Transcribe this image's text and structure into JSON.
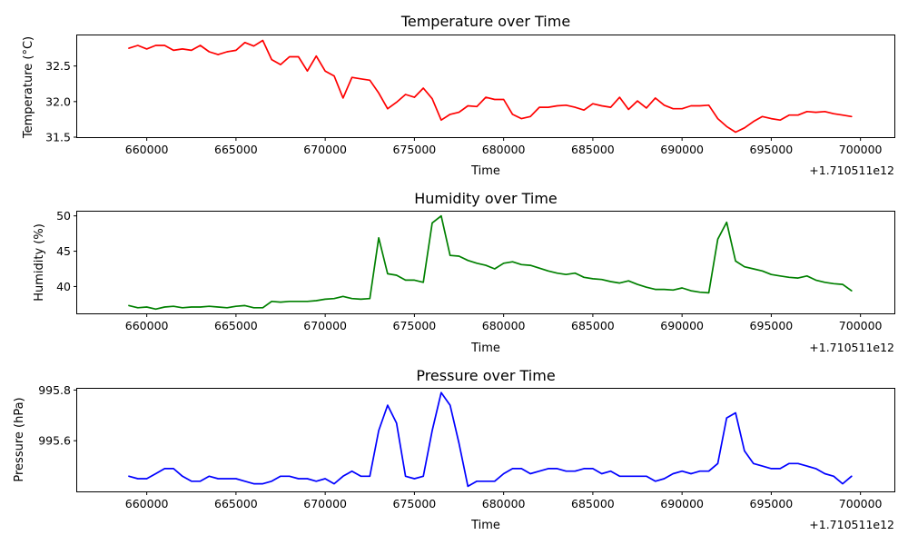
{
  "chart_data": [
    {
      "type": "line",
      "title": "Temperature over Time",
      "xlabel": "Time",
      "ylabel": "Temperature (°C)",
      "x_offset_label": "+1.710511e12",
      "xlim": [
        656100,
        701900
      ],
      "ylim": [
        31.5,
        32.93
      ],
      "xticks": [
        660000,
        665000,
        670000,
        675000,
        680000,
        685000,
        690000,
        695000,
        700000
      ],
      "xtick_labels": [
        "660000",
        "665000",
        "670000",
        "675000",
        "680000",
        "685000",
        "690000",
        "695000",
        "700000"
      ],
      "yticks": [
        31.5,
        32.0,
        32.5
      ],
      "ytick_labels": [
        "31.5",
        "32.0",
        "32.5"
      ],
      "grid": false,
      "series": [
        {
          "color": "#ff0000",
          "x": [
            659000,
            659500,
            660000,
            660500,
            661000,
            661500,
            662000,
            662500,
            663000,
            663500,
            664000,
            664500,
            665000,
            665500,
            666000,
            666500,
            667000,
            667500,
            668000,
            668500,
            669000,
            669500,
            670000,
            670500,
            671000,
            671500,
            672000,
            672500,
            673000,
            673500,
            674000,
            674500,
            675000,
            675500,
            676000,
            676500,
            677000,
            677500,
            678000,
            678500,
            679000,
            679500,
            680000,
            680500,
            681000,
            681500,
            682000,
            682500,
            683000,
            683500,
            684000,
            684500,
            685000,
            685500,
            686000,
            686500,
            687000,
            687500,
            688000,
            688500,
            689000,
            689500,
            690000,
            690500,
            691000,
            691500,
            692000,
            692500,
            693000,
            693500,
            694000,
            694500,
            695000,
            695500,
            696000,
            696500,
            697000,
            697500,
            698000,
            698500,
            699000,
            699500
          ],
          "values": [
            32.75,
            32.79,
            32.74,
            32.79,
            32.79,
            32.72,
            32.74,
            32.72,
            32.79,
            32.7,
            32.66,
            32.7,
            32.72,
            32.83,
            32.78,
            32.86,
            32.59,
            32.52,
            32.63,
            32.63,
            32.43,
            32.64,
            32.43,
            32.36,
            32.05,
            32.34,
            32.32,
            32.3,
            32.12,
            31.9,
            31.99,
            32.1,
            32.06,
            32.19,
            32.04,
            31.74,
            31.82,
            31.85,
            31.94,
            31.93,
            32.06,
            32.03,
            32.03,
            31.82,
            31.76,
            31.79,
            31.92,
            31.92,
            31.94,
            31.95,
            31.92,
            31.88,
            31.97,
            31.94,
            31.92,
            32.06,
            31.89,
            32.01,
            31.91,
            32.05,
            31.95,
            31.9,
            31.9,
            31.94,
            31.94,
            31.95,
            31.76,
            31.65,
            31.57,
            31.63,
            31.72,
            31.79,
            31.76,
            31.74,
            31.81,
            31.81,
            31.86,
            31.85,
            31.86,
            31.83,
            31.81,
            31.79
          ]
        }
      ]
    },
    {
      "type": "line",
      "title": "Humidity over Time",
      "xlabel": "Time",
      "ylabel": "Humidity (%)",
      "x_offset_label": "+1.710511e12",
      "xlim": [
        656100,
        701900
      ],
      "ylim": [
        36.2,
        50.6
      ],
      "xticks": [
        660000,
        665000,
        670000,
        675000,
        680000,
        685000,
        690000,
        695000,
        700000
      ],
      "xtick_labels": [
        "660000",
        "665000",
        "670000",
        "675000",
        "680000",
        "685000",
        "690000",
        "695000",
        "700000"
      ],
      "yticks": [
        40,
        45,
        50
      ],
      "ytick_labels": [
        "40",
        "45",
        "50"
      ],
      "grid": false,
      "series": [
        {
          "color": "#008000",
          "x": [
            659000,
            659500,
            660000,
            660500,
            661000,
            661500,
            662000,
            662500,
            663000,
            663500,
            664000,
            664500,
            665000,
            665500,
            666000,
            666500,
            667000,
            667500,
            668000,
            668500,
            669000,
            669500,
            670000,
            670500,
            671000,
            671500,
            672000,
            672500,
            673000,
            673500,
            674000,
            674500,
            675000,
            675500,
            676000,
            676500,
            677000,
            677500,
            678000,
            678500,
            679000,
            679500,
            680000,
            680500,
            681000,
            681500,
            682000,
            682500,
            683000,
            683500,
            684000,
            684500,
            685000,
            685500,
            686000,
            686500,
            687000,
            687500,
            688000,
            688500,
            689000,
            689500,
            690000,
            690500,
            691000,
            691500,
            692000,
            692500,
            693000,
            693500,
            694000,
            694500,
            695000,
            695500,
            696000,
            696500,
            697000,
            697500,
            698000,
            698500,
            699000,
            699500
          ],
          "values": [
            37.3,
            37.0,
            37.1,
            36.8,
            37.1,
            37.2,
            37.0,
            37.1,
            37.1,
            37.2,
            37.1,
            37.0,
            37.2,
            37.3,
            37.0,
            37.0,
            37.9,
            37.8,
            37.9,
            37.9,
            37.9,
            38.0,
            38.2,
            38.3,
            38.6,
            38.3,
            38.2,
            38.3,
            46.9,
            41.8,
            41.6,
            40.9,
            40.9,
            40.6,
            49.0,
            50.0,
            44.4,
            44.3,
            43.7,
            43.3,
            43.0,
            42.5,
            43.3,
            43.5,
            43.1,
            43.0,
            42.6,
            42.2,
            41.9,
            41.7,
            41.9,
            41.3,
            41.1,
            41.0,
            40.7,
            40.5,
            40.8,
            40.3,
            39.9,
            39.6,
            39.6,
            39.5,
            39.8,
            39.4,
            39.2,
            39.1,
            46.7,
            49.1,
            43.6,
            42.8,
            42.5,
            42.2,
            41.7,
            41.5,
            41.3,
            41.2,
            41.5,
            40.9,
            40.6,
            40.4,
            40.3,
            39.4
          ]
        }
      ]
    },
    {
      "type": "line",
      "title": "Pressure over Time",
      "xlabel": "Time",
      "ylabel": "Pressure (hPa)",
      "x_offset_label": "+1.710511e12",
      "xlim": [
        656100,
        701900
      ],
      "ylim": [
        995.4,
        995.805
      ],
      "xticks": [
        660000,
        665000,
        670000,
        675000,
        680000,
        685000,
        690000,
        695000,
        700000
      ],
      "xtick_labels": [
        "660000",
        "665000",
        "670000",
        "675000",
        "680000",
        "685000",
        "690000",
        "695000",
        "700000"
      ],
      "yticks": [
        995.6,
        995.8
      ],
      "ytick_labels": [
        "995.6",
        "995.8"
      ],
      "grid": false,
      "series": [
        {
          "color": "#0000ff",
          "x": [
            659000,
            659500,
            660000,
            660500,
            661000,
            661500,
            662000,
            662500,
            663000,
            663500,
            664000,
            664500,
            665000,
            665500,
            666000,
            666500,
            667000,
            667500,
            668000,
            668500,
            669000,
            669500,
            670000,
            670500,
            671000,
            671500,
            672000,
            672500,
            673000,
            673500,
            674000,
            674500,
            675000,
            675500,
            676000,
            676500,
            677000,
            677500,
            678000,
            678500,
            679000,
            679500,
            680000,
            680500,
            681000,
            681500,
            682000,
            682500,
            683000,
            683500,
            684000,
            684500,
            685000,
            685500,
            686000,
            686500,
            687000,
            687500,
            688000,
            688500,
            689000,
            689500,
            690000,
            690500,
            691000,
            691500,
            692000,
            692500,
            693000,
            693500,
            694000,
            694500,
            695000,
            695500,
            696000,
            696500,
            697000,
            697500,
            698000,
            698500,
            699000,
            699500
          ],
          "values": [
            995.46,
            995.45,
            995.45,
            995.47,
            995.49,
            995.49,
            995.46,
            995.44,
            995.44,
            995.46,
            995.45,
            995.45,
            995.45,
            995.44,
            995.43,
            995.43,
            995.44,
            995.46,
            995.46,
            995.45,
            995.45,
            995.44,
            995.45,
            995.43,
            995.46,
            995.48,
            995.46,
            995.46,
            995.64,
            995.74,
            995.67,
            995.46,
            995.45,
            995.46,
            995.64,
            995.79,
            995.74,
            995.59,
            995.42,
            995.44,
            995.44,
            995.44,
            995.47,
            995.49,
            995.49,
            995.47,
            995.48,
            995.49,
            995.49,
            995.48,
            995.48,
            995.49,
            995.49,
            995.47,
            995.48,
            995.46,
            995.46,
            995.46,
            995.46,
            995.44,
            995.45,
            995.47,
            995.48,
            995.47,
            995.48,
            995.48,
            995.51,
            995.69,
            995.71,
            995.56,
            995.51,
            995.5,
            995.49,
            995.49,
            995.51,
            995.51,
            995.5,
            995.49,
            995.47,
            995.46,
            995.43,
            995.46
          ]
        }
      ]
    }
  ]
}
